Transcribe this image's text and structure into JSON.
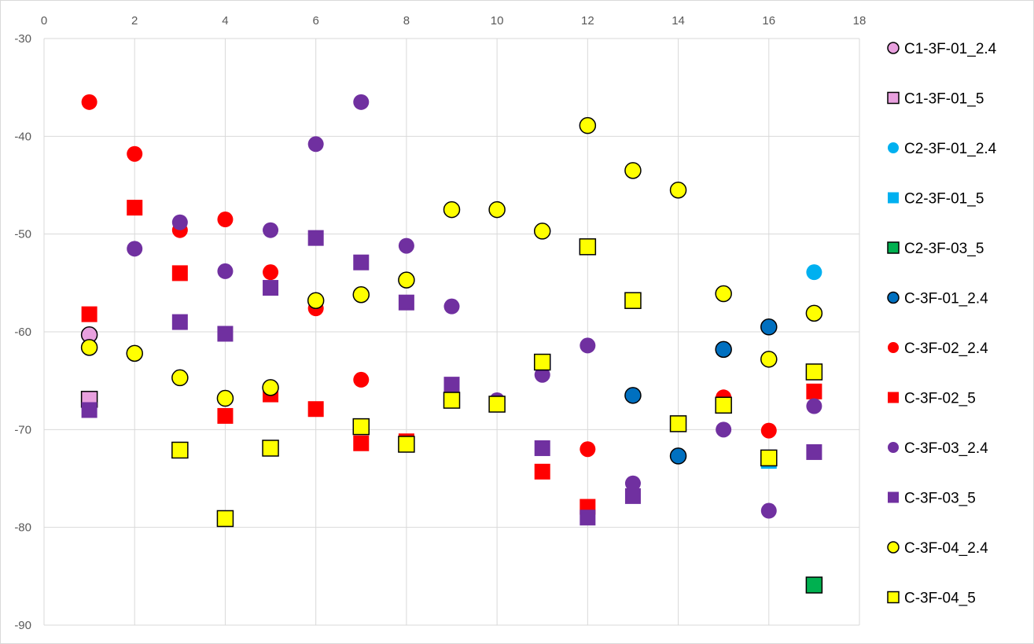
{
  "chart_data": {
    "type": "scatter",
    "title": "",
    "xlabel": "",
    "ylabel": "",
    "xlim": [
      0,
      18
    ],
    "ylim": [
      -90,
      -30
    ],
    "x_ticks": [
      0,
      2,
      4,
      6,
      8,
      10,
      12,
      14,
      16,
      18
    ],
    "y_ticks": [
      -30,
      -40,
      -50,
      -60,
      -70,
      -80,
      -90
    ],
    "x_axis_position": "top",
    "grid": true,
    "legend_position": "right",
    "series": [
      {
        "name": "C1-3F-01_2.4",
        "marker": "circle",
        "color": "#e8a0de",
        "outline": "#000000",
        "points": [
          [
            1,
            -60.3
          ]
        ]
      },
      {
        "name": "C1-3F-01_5",
        "marker": "square",
        "color": "#e8a0de",
        "outline": "#000000",
        "points": [
          [
            1,
            -66.9
          ]
        ]
      },
      {
        "name": "C2-3F-01_2.4",
        "marker": "circle",
        "color": "#00b0f0",
        "outline": "none",
        "points": [
          [
            17,
            -53.9
          ]
        ]
      },
      {
        "name": "C2-3F-01_5",
        "marker": "square",
        "color": "#00b0f0",
        "outline": "none",
        "points": [
          [
            16,
            -73.2
          ]
        ]
      },
      {
        "name": "C2-3F-03_5",
        "marker": "square",
        "color": "#00b050",
        "outline": "#000000",
        "points": [
          [
            17,
            -85.9
          ]
        ]
      },
      {
        "name": "C-3F-01_2.4",
        "marker": "circle",
        "color": "#0070c0",
        "outline": "#000000",
        "points": [
          [
            13,
            -66.5
          ],
          [
            14,
            -72.7
          ],
          [
            15,
            -61.8
          ],
          [
            16,
            -59.5
          ]
        ]
      },
      {
        "name": "C-3F-02_2.4",
        "marker": "circle",
        "color": "#ff0000",
        "outline": "none",
        "points": [
          [
            1,
            -36.5
          ],
          [
            2,
            -41.8
          ],
          [
            3,
            -49.6
          ],
          [
            4,
            -48.5
          ],
          [
            5,
            -53.9
          ],
          [
            6,
            -57.6
          ],
          [
            7,
            -64.9
          ],
          [
            12,
            -72.0
          ],
          [
            15,
            -66.7
          ],
          [
            16,
            -70.1
          ]
        ]
      },
      {
        "name": "C-3F-02_5",
        "marker": "square",
        "color": "#ff0000",
        "outline": "none",
        "points": [
          [
            1,
            -58.2
          ],
          [
            2,
            -47.3
          ],
          [
            3,
            -54.0
          ],
          [
            4,
            -68.6
          ],
          [
            5,
            -66.4
          ],
          [
            6,
            -67.9
          ],
          [
            7,
            -71.4
          ],
          [
            8,
            -71.2
          ],
          [
            11,
            -74.3
          ],
          [
            12,
            -77.9
          ],
          [
            17,
            -66.1
          ]
        ]
      },
      {
        "name": "C-3F-03_2.4",
        "marker": "circle",
        "color": "#7030a0",
        "outline": "none",
        "points": [
          [
            2,
            -51.5
          ],
          [
            3,
            -48.8
          ],
          [
            4,
            -53.8
          ],
          [
            5,
            -49.6
          ],
          [
            6,
            -40.8
          ],
          [
            7,
            -36.5
          ],
          [
            8,
            -51.2
          ],
          [
            9,
            -57.4
          ],
          [
            10,
            -67.0
          ],
          [
            11,
            -64.4
          ],
          [
            12,
            -61.4
          ],
          [
            13,
            -75.5
          ],
          [
            15,
            -70.0
          ],
          [
            16,
            -78.3
          ],
          [
            17,
            -67.6
          ]
        ]
      },
      {
        "name": "C-3F-03_5",
        "marker": "square",
        "color": "#7030a0",
        "outline": "none",
        "points": [
          [
            1,
            -68.0
          ],
          [
            3,
            -59.0
          ],
          [
            4,
            -60.2
          ],
          [
            5,
            -55.5
          ],
          [
            6,
            -50.4
          ],
          [
            7,
            -52.9
          ],
          [
            8,
            -57.0
          ],
          [
            9,
            -65.4
          ],
          [
            11,
            -71.9
          ],
          [
            12,
            -79.0
          ],
          [
            13,
            -76.8
          ],
          [
            17,
            -72.3
          ]
        ]
      },
      {
        "name": "C-3F-04_2.4",
        "marker": "circle",
        "color": "#ffff00",
        "outline": "#000000",
        "points": [
          [
            1,
            -61.6
          ],
          [
            2,
            -62.2
          ],
          [
            3,
            -64.7
          ],
          [
            4,
            -66.8
          ],
          [
            5,
            -65.7
          ],
          [
            6,
            -56.8
          ],
          [
            7,
            -56.2
          ],
          [
            8,
            -54.7
          ],
          [
            9,
            -47.5
          ],
          [
            10,
            -47.5
          ],
          [
            11,
            -49.7
          ],
          [
            12,
            -38.9
          ],
          [
            13,
            -43.5
          ],
          [
            14,
            -45.5
          ],
          [
            15,
            -56.1
          ],
          [
            16,
            -62.8
          ],
          [
            17,
            -58.1
          ]
        ]
      },
      {
        "name": "C-3F-04_5",
        "marker": "square",
        "color": "#ffff00",
        "outline": "#000000",
        "points": [
          [
            3,
            -72.1
          ],
          [
            4,
            -79.1
          ],
          [
            5,
            -71.9
          ],
          [
            7,
            -69.7
          ],
          [
            8,
            -71.5
          ],
          [
            9,
            -67.0
          ],
          [
            10,
            -67.4
          ],
          [
            11,
            -63.1
          ],
          [
            12,
            -51.3
          ],
          [
            13,
            -56.8
          ],
          [
            14,
            -69.4
          ],
          [
            15,
            -67.5
          ],
          [
            16,
            -72.9
          ],
          [
            17,
            -64.1
          ]
        ]
      }
    ]
  }
}
